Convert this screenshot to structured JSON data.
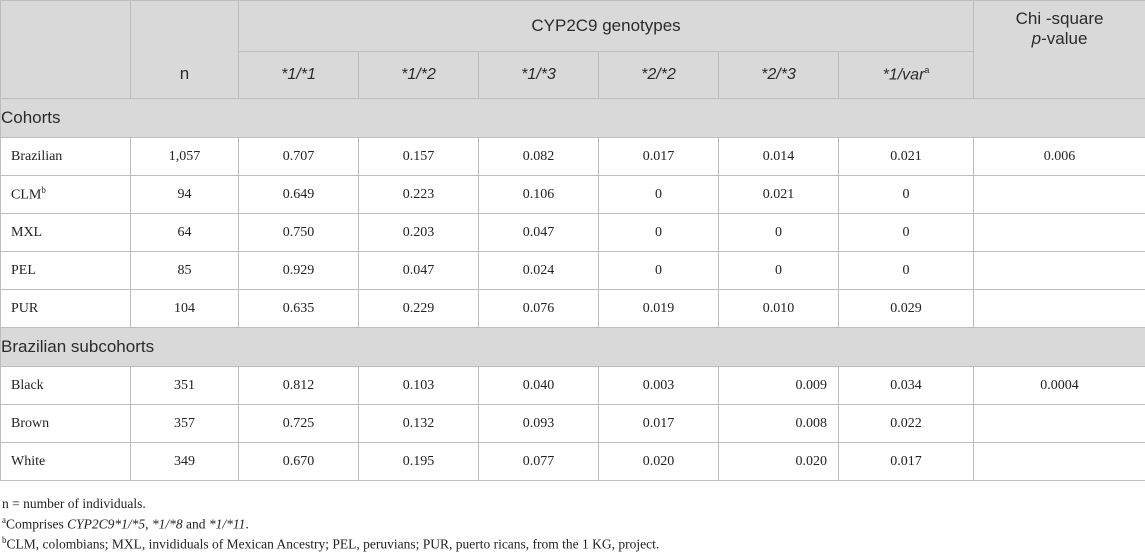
{
  "table": {
    "header": {
      "group_title": "CYP2C9 genotypes",
      "chi_line1": "Chi -square",
      "chi_line2_p": "p",
      "chi_line2_rest": "-value",
      "n_label": "n",
      "genotypes": [
        {
          "label": "*1/*1",
          "sup": ""
        },
        {
          "label": "*1/*2",
          "sup": ""
        },
        {
          "label": "*1/*3",
          "sup": ""
        },
        {
          "label": "*2/*2",
          "sup": ""
        },
        {
          "label": "*2/*3",
          "sup": ""
        },
        {
          "label": "*1/var",
          "sup": "a"
        }
      ]
    },
    "sections": [
      {
        "title": "Cohorts",
        "rows": [
          {
            "label": "Brazilian",
            "sup": "",
            "n": "1,057",
            "vals": [
              "0.707",
              "0.157",
              "0.082",
              "0.017",
              "0.014",
              "0.021"
            ],
            "chi": "0.006"
          },
          {
            "label": "CLM",
            "sup": "b",
            "n": "94",
            "vals": [
              "0.649",
              "0.223",
              "0.106",
              "0",
              "0.021",
              "0"
            ],
            "chi": ""
          },
          {
            "label": "MXL",
            "sup": "",
            "n": "64",
            "vals": [
              "0.750",
              "0.203",
              "0.047",
              "0",
              "0",
              "0"
            ],
            "chi": ""
          },
          {
            "label": "PEL",
            "sup": "",
            "n": "85",
            "vals": [
              "0.929",
              "0.047",
              "0.024",
              "0",
              "0",
              "0"
            ],
            "chi": ""
          },
          {
            "label": "PUR",
            "sup": "",
            "n": "104",
            "vals": [
              "0.635",
              "0.229",
              "0.076",
              "0.019",
              "0.010",
              "0.029"
            ],
            "chi": ""
          }
        ]
      },
      {
        "title": "Brazilian subcohorts",
        "rows": [
          {
            "label": "Black",
            "sup": "",
            "n": "351",
            "vals": [
              "0.812",
              "0.103",
              "0.040",
              "0.003",
              "0.009",
              "0.034"
            ],
            "chi": "0.0004"
          },
          {
            "label": "Brown",
            "sup": "",
            "n": "357",
            "vals": [
              "0.725",
              "0.132",
              "0.093",
              "0.017",
              "0.008",
              "0.022"
            ],
            "chi": ""
          },
          {
            "label": "White",
            "sup": "",
            "n": "349",
            "vals": [
              "0.670",
              "0.195",
              "0.077",
              "0.020",
              "0.020",
              "0.017"
            ],
            "chi": ""
          }
        ]
      }
    ]
  },
  "footnotes": {
    "n_note": "n = number of individuals.",
    "a_sup": "a",
    "a_prefix": "Comprises ",
    "a_italic": "CYP2C9*1/*5",
    "a_sep1": ", ",
    "a_italic2": "*1/*8",
    "a_and": " and ",
    "a_italic3": "*1/*11",
    "a_end": ".",
    "b_sup": "b",
    "b_text": "CLM, colombians; MXL, invididuals of Mexican Ancestry; PEL, peruvians; PUR, puerto ricans, from the 1 KG, project."
  }
}
